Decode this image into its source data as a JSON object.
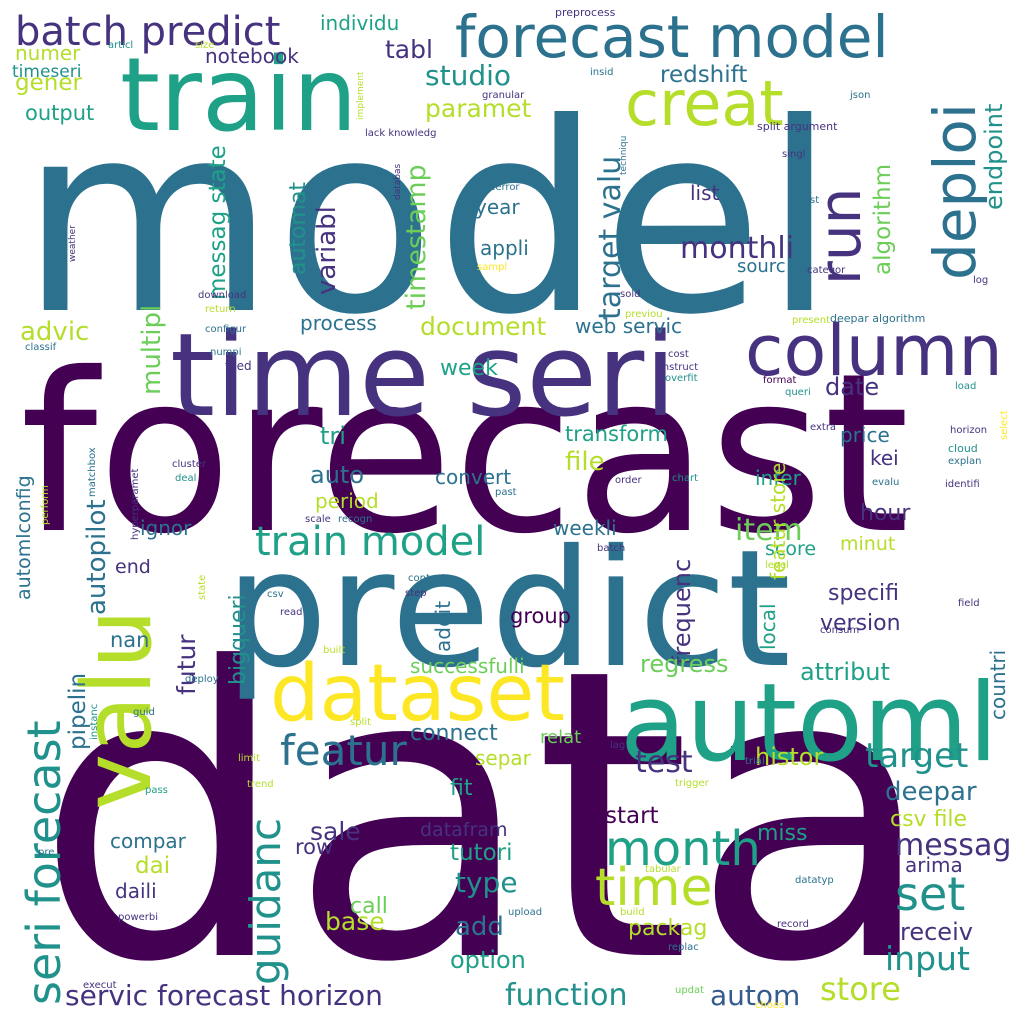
{
  "palette": {
    "purple": "#440154",
    "indigo": "#46327e",
    "blue": "#365c8d",
    "teal": "#2c728e",
    "cyan": "#21918c",
    "green": "#1fa187",
    "lime": "#6cce59",
    "yellowgreen": "#b5de2b",
    "yellow": "#fde725"
  },
  "words": [
    {
      "text": "data",
      "color": "purple"
    },
    {
      "text": "model",
      "color": "teal"
    },
    {
      "text": "forecast",
      "color": "purple"
    },
    {
      "text": "predict",
      "color": "teal"
    },
    {
      "text": "time seri",
      "color": "indigo"
    },
    {
      "text": "train",
      "color": "green"
    },
    {
      "text": "automl",
      "color": "green"
    },
    {
      "text": "valu",
      "color": "yellowgreen"
    },
    {
      "text": "dataset",
      "color": "yellow"
    },
    {
      "text": "column",
      "color": "indigo"
    },
    {
      "text": "forecast model",
      "color": "teal"
    },
    {
      "text": "creat",
      "color": "yellowgreen"
    },
    {
      "text": "run",
      "color": "indigo"
    },
    {
      "text": "deploi",
      "color": "teal"
    },
    {
      "text": "batch predict",
      "color": "indigo"
    },
    {
      "text": "seri forecast",
      "color": "cyan"
    },
    {
      "text": "featur",
      "color": "teal"
    },
    {
      "text": "train model",
      "color": "green"
    },
    {
      "text": "month",
      "color": "green"
    },
    {
      "text": "time",
      "color": "yellowgreen"
    },
    {
      "text": "set",
      "color": "cyan"
    },
    {
      "text": "guidanc",
      "color": "cyan"
    },
    {
      "text": "servic forecast horizon",
      "color": "indigo"
    },
    {
      "text": "function",
      "color": "cyan"
    },
    {
      "text": "store",
      "color": "yellowgreen"
    },
    {
      "text": "autom",
      "color": "blue"
    },
    {
      "text": "input",
      "color": "cyan"
    },
    {
      "text": "target",
      "color": "cyan"
    },
    {
      "text": "messag",
      "color": "indigo"
    },
    {
      "text": "target valu",
      "color": "teal"
    },
    {
      "text": "monthli",
      "color": "indigo"
    },
    {
      "text": "studio",
      "color": "cyan"
    },
    {
      "text": "paramet",
      "color": "yellowgreen"
    },
    {
      "text": "tabl",
      "color": "indigo"
    },
    {
      "text": "redshift",
      "color": "teal"
    },
    {
      "text": "endpoint",
      "color": "cyan"
    },
    {
      "text": "algorithm",
      "color": "lime"
    },
    {
      "text": "timestamp",
      "color": "lime"
    },
    {
      "text": "messag state",
      "color": "green"
    },
    {
      "text": "multipl",
      "color": "lime"
    },
    {
      "text": "variabl",
      "color": "indigo"
    },
    {
      "text": "automat",
      "color": "cyan"
    },
    {
      "text": "advic",
      "color": "yellowgreen"
    },
    {
      "text": "process",
      "color": "teal"
    },
    {
      "text": "document",
      "color": "yellowgreen"
    },
    {
      "text": "web servic",
      "color": "teal"
    },
    {
      "text": "notebook",
      "color": "indigo"
    },
    {
      "text": "individu",
      "color": "green"
    },
    {
      "text": "numer",
      "color": "yellowgreen"
    },
    {
      "text": "gener",
      "color": "yellowgreen"
    },
    {
      "text": "timeseri",
      "color": "cyan"
    },
    {
      "text": "output",
      "color": "green"
    },
    {
      "text": "list",
      "color": "indigo"
    },
    {
      "text": "year",
      "color": "teal"
    },
    {
      "text": "appli",
      "color": "teal"
    },
    {
      "text": "sourc",
      "color": "teal"
    },
    {
      "text": "week",
      "color": "green"
    },
    {
      "text": "tri",
      "color": "green"
    },
    {
      "text": "auto",
      "color": "teal"
    },
    {
      "text": "convert",
      "color": "teal"
    },
    {
      "text": "file",
      "color": "yellowgreen"
    },
    {
      "text": "transform",
      "color": "green"
    },
    {
      "text": "date",
      "color": "indigo"
    },
    {
      "text": "price",
      "color": "teal"
    },
    {
      "text": "kei",
      "color": "indigo"
    },
    {
      "text": "infer",
      "color": "green"
    },
    {
      "text": "autopilot",
      "color": "teal"
    },
    {
      "text": "period",
      "color": "yellowgreen"
    },
    {
      "text": "ignor",
      "color": "teal"
    },
    {
      "text": "weekli",
      "color": "teal"
    },
    {
      "text": "item",
      "color": "lime"
    },
    {
      "text": "hour",
      "color": "indigo"
    },
    {
      "text": "score",
      "color": "green"
    },
    {
      "text": "minut",
      "color": "yellowgreen"
    },
    {
      "text": "featur store",
      "color": "yellowgreen"
    },
    {
      "text": "frequenc",
      "color": "indigo"
    },
    {
      "text": "futur",
      "color": "indigo"
    },
    {
      "text": "bigqueri",
      "color": "cyan"
    },
    {
      "text": "end",
      "color": "indigo"
    },
    {
      "text": "specifi",
      "color": "indigo"
    },
    {
      "text": "version",
      "color": "indigo"
    },
    {
      "text": "local",
      "color": "green"
    },
    {
      "text": "countri",
      "color": "teal"
    },
    {
      "text": "group",
      "color": "purple"
    },
    {
      "text": "addit",
      "color": "teal"
    },
    {
      "text": "nan",
      "color": "teal"
    },
    {
      "text": "pipelin",
      "color": "teal"
    },
    {
      "text": "automlconfig",
      "color": "teal"
    },
    {
      "text": "regress",
      "color": "lime"
    },
    {
      "text": "successfulli",
      "color": "lime"
    },
    {
      "text": "attribut",
      "color": "green"
    },
    {
      "text": "connect",
      "color": "teal"
    },
    {
      "text": "relat",
      "color": "lime"
    },
    {
      "text": "separ",
      "color": "yellowgreen"
    },
    {
      "text": "test",
      "color": "indigo"
    },
    {
      "text": "histor",
      "color": "yellowgreen"
    },
    {
      "text": "fit",
      "color": "green"
    },
    {
      "text": "deepar",
      "color": "teal"
    },
    {
      "text": "start",
      "color": "purple"
    },
    {
      "text": "csv file",
      "color": "yellowgreen"
    },
    {
      "text": "sale",
      "color": "indigo"
    },
    {
      "text": "compar",
      "color": "teal"
    },
    {
      "text": "row",
      "color": "indigo"
    },
    {
      "text": "dai",
      "color": "yellowgreen"
    },
    {
      "text": "daili",
      "color": "indigo"
    },
    {
      "text": "datafram",
      "color": "indigo"
    },
    {
      "text": "tutori",
      "color": "green"
    },
    {
      "text": "miss",
      "color": "green"
    },
    {
      "text": "arima",
      "color": "indigo"
    },
    {
      "text": "type",
      "color": "cyan"
    },
    {
      "text": "base",
      "color": "yellowgreen"
    },
    {
      "text": "call",
      "color": "lime"
    },
    {
      "text": "add",
      "color": "teal"
    },
    {
      "text": "packag",
      "color": "yellowgreen"
    },
    {
      "text": "option",
      "color": "green"
    },
    {
      "text": "receiv",
      "color": "indigo"
    },
    {
      "text": "preprocess",
      "color": "indigo"
    },
    {
      "text": "articl",
      "color": "cyan"
    },
    {
      "text": "size",
      "color": "yellowgreen"
    },
    {
      "text": "implement",
      "color": "yellowgreen"
    },
    {
      "text": "insid",
      "color": "teal"
    },
    {
      "text": "granular",
      "color": "indigo"
    },
    {
      "text": "json",
      "color": "teal"
    },
    {
      "text": "lack knowledg",
      "color": "indigo"
    },
    {
      "text": "techniqu",
      "color": "teal"
    },
    {
      "text": "split argument",
      "color": "indigo"
    },
    {
      "text": "databas",
      "color": "indigo"
    },
    {
      "text": "singl",
      "color": "indigo"
    },
    {
      "text": "typeerror",
      "color": "teal"
    },
    {
      "text": "rest",
      "color": "teal"
    },
    {
      "text": "weather",
      "color": "indigo"
    },
    {
      "text": "sampl",
      "color": "yellow"
    },
    {
      "text": "categor",
      "color": "indigo"
    },
    {
      "text": "download",
      "color": "indigo"
    },
    {
      "text": "return",
      "color": "yellowgreen"
    },
    {
      "text": "sold",
      "color": "indigo"
    },
    {
      "text": "log",
      "color": "indigo"
    },
    {
      "text": "configur",
      "color": "teal"
    },
    {
      "text": "previou",
      "color": "yellowgreen"
    },
    {
      "text": "present",
      "color": "yellowgreen"
    },
    {
      "text": "deepar algorithm",
      "color": "teal"
    },
    {
      "text": "classif",
      "color": "teal"
    },
    {
      "text": "numpi",
      "color": "teal"
    },
    {
      "text": "cost",
      "color": "indigo"
    },
    {
      "text": "feed",
      "color": "indigo"
    },
    {
      "text": "instruct",
      "color": "indigo"
    },
    {
      "text": "overfit",
      "color": "cyan"
    },
    {
      "text": "format",
      "color": "purple"
    },
    {
      "text": "queri",
      "color": "cyan"
    },
    {
      "text": "load",
      "color": "cyan"
    },
    {
      "text": "extra",
      "color": "indigo"
    },
    {
      "text": "horizon",
      "color": "indigo"
    },
    {
      "text": "cloud",
      "color": "cyan"
    },
    {
      "text": "explan",
      "color": "teal"
    },
    {
      "text": "select",
      "color": "yellow"
    },
    {
      "text": "matchbox",
      "color": "teal"
    },
    {
      "text": "cluster",
      "color": "indigo"
    },
    {
      "text": "deal",
      "color": "cyan"
    },
    {
      "text": "order",
      "color": "indigo"
    },
    {
      "text": "chart",
      "color": "cyan"
    },
    {
      "text": "evalu",
      "color": "teal"
    },
    {
      "text": "identifi",
      "color": "indigo"
    },
    {
      "text": "hyperparamet",
      "color": "indigo"
    },
    {
      "text": "perform",
      "color": "yellowgreen"
    },
    {
      "text": "past",
      "color": "teal"
    },
    {
      "text": "scale",
      "color": "indigo"
    },
    {
      "text": "recogn",
      "color": "teal"
    },
    {
      "text": "state",
      "color": "yellowgreen"
    },
    {
      "text": "batch",
      "color": "indigo"
    },
    {
      "text": "level",
      "color": "yellowgreen"
    },
    {
      "text": "context",
      "color": "teal"
    },
    {
      "text": "csv",
      "color": "teal"
    },
    {
      "text": "step",
      "color": "indigo"
    },
    {
      "text": "read",
      "color": "indigo"
    },
    {
      "text": "field",
      "color": "indigo"
    },
    {
      "text": "consum",
      "color": "indigo"
    },
    {
      "text": "built",
      "color": "yellowgreen"
    },
    {
      "text": "deploy",
      "color": "teal"
    },
    {
      "text": "instanc",
      "color": "cyan"
    },
    {
      "text": "guid",
      "color": "teal"
    },
    {
      "text": "split",
      "color": "yellowgreen"
    },
    {
      "text": "limit",
      "color": "yellowgreen"
    },
    {
      "text": "lag",
      "color": "indigo"
    },
    {
      "text": "trial",
      "color": "teal"
    },
    {
      "text": "trend",
      "color": "yellowgreen"
    },
    {
      "text": "trigger",
      "color": "yellowgreen"
    },
    {
      "text": "pass",
      "color": "green"
    },
    {
      "text": "pre",
      "color": "teal"
    },
    {
      "text": "tabular",
      "color": "yellowgreen"
    },
    {
      "text": "build",
      "color": "yellowgreen"
    },
    {
      "text": "datatyp",
      "color": "teal"
    },
    {
      "text": "powerbi",
      "color": "indigo"
    },
    {
      "text": "upload",
      "color": "teal"
    },
    {
      "text": "record",
      "color": "indigo"
    },
    {
      "text": "replac",
      "color": "teal"
    },
    {
      "text": "execut",
      "color": "indigo"
    },
    {
      "text": "updat",
      "color": "lime"
    },
    {
      "text": "choos",
      "color": "yellow"
    }
  ]
}
